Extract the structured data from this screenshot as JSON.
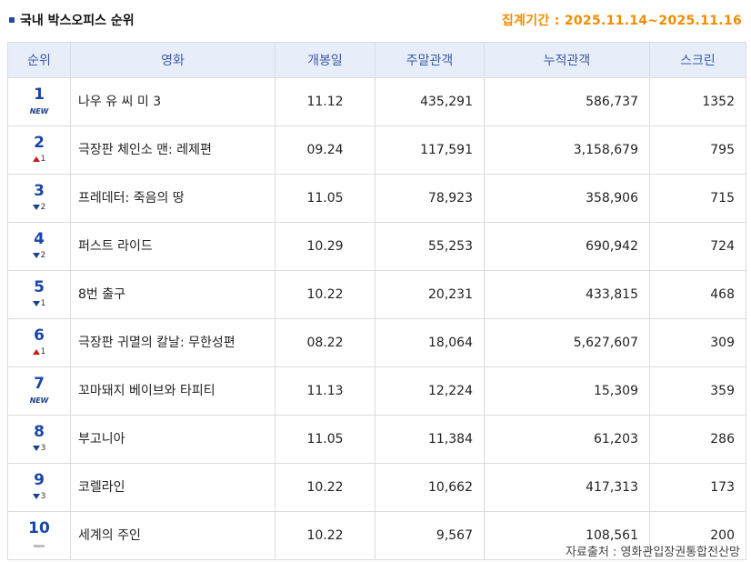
{
  "header": {
    "title": "국내 박스오피스 순위",
    "period": "집계기간 : 2025.11.14~2025.11.16"
  },
  "columns": [
    "순위",
    "영화",
    "개봉일",
    "주말관객",
    "누적관객",
    "스크린"
  ],
  "rows": [
    {
      "rank": "1",
      "change": {
        "type": "new",
        "text": "NEW"
      },
      "title": "나우 유 씨 미 3",
      "release": "11.12",
      "weekend": "435,291",
      "total": "586,737",
      "screens": "1352"
    },
    {
      "rank": "2",
      "change": {
        "type": "up",
        "text": "1"
      },
      "title": "극장판 체인소 맨: 레제편",
      "release": "09.24",
      "weekend": "117,591",
      "total": "3,158,679",
      "screens": "795"
    },
    {
      "rank": "3",
      "change": {
        "type": "down",
        "text": "2"
      },
      "title": "프레데터: 죽음의 땅",
      "release": "11.05",
      "weekend": "78,923",
      "total": "358,906",
      "screens": "715"
    },
    {
      "rank": "4",
      "change": {
        "type": "down",
        "text": "2"
      },
      "title": "퍼스트 라이드",
      "release": "10.29",
      "weekend": "55,253",
      "total": "690,942",
      "screens": "724"
    },
    {
      "rank": "5",
      "change": {
        "type": "down",
        "text": "1"
      },
      "title": "8번 출구",
      "release": "10.22",
      "weekend": "20,231",
      "total": "433,815",
      "screens": "468"
    },
    {
      "rank": "6",
      "change": {
        "type": "up",
        "text": "1"
      },
      "title": "극장판 귀멸의 칼날: 무한성편",
      "release": "08.22",
      "weekend": "18,064",
      "total": "5,627,607",
      "screens": "309"
    },
    {
      "rank": "7",
      "change": {
        "type": "new",
        "text": "NEW"
      },
      "title": "꼬마돼지 베이브와 타피티",
      "release": "11.13",
      "weekend": "12,224",
      "total": "15,309",
      "screens": "359"
    },
    {
      "rank": "8",
      "change": {
        "type": "down",
        "text": "3"
      },
      "title": "부고니아",
      "release": "11.05",
      "weekend": "11,384",
      "total": "61,203",
      "screens": "286"
    },
    {
      "rank": "9",
      "change": {
        "type": "down",
        "text": "3"
      },
      "title": "코렐라인",
      "release": "10.22",
      "weekend": "10,662",
      "total": "417,313",
      "screens": "173"
    },
    {
      "rank": "10",
      "change": {
        "type": "same",
        "text": ""
      },
      "title": "세계의 주인",
      "release": "10.22",
      "weekend": "9,567",
      "total": "108,561",
      "screens": "200"
    }
  ],
  "footer": {
    "source": "자료출처 : 영화관입장권통합전산망"
  },
  "colors": {
    "accent_title": "#1a46a8",
    "period": "#f28c00",
    "header_bg": "#e8eef9",
    "up": "#cc1a1a",
    "down": "#1a3f8f"
  }
}
